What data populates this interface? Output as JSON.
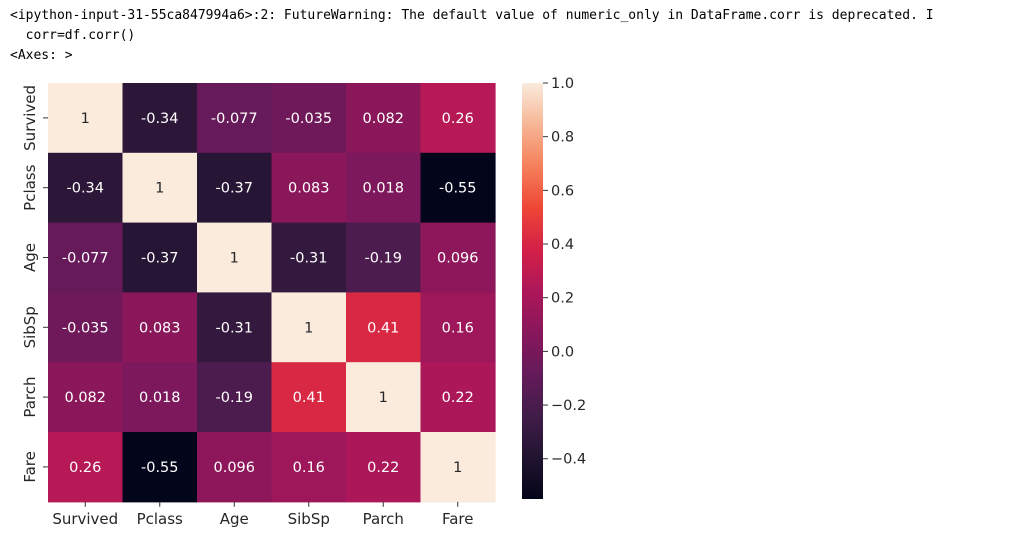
{
  "output": {
    "warning_line": "<ipython-input-31-55ca847994a6>:2: FutureWarning: The default value of numeric_only in DataFrame.corr is deprecated. I",
    "code_line": "  corr=df.corr()",
    "repr_line": "<Axes: >"
  },
  "chart_data": {
    "type": "heatmap",
    "title": "",
    "xlabel": "",
    "ylabel": "",
    "x_categories": [
      "Survived",
      "Pclass",
      "Age",
      "SibSp",
      "Parch",
      "Fare"
    ],
    "y_categories": [
      "Survived",
      "Pclass",
      "Age",
      "SibSp",
      "Parch",
      "Fare"
    ],
    "values": [
      [
        1,
        -0.34,
        -0.077,
        -0.035,
        0.082,
        0.26
      ],
      [
        -0.34,
        1,
        -0.37,
        0.083,
        0.018,
        -0.55
      ],
      [
        -0.077,
        -0.37,
        1,
        -0.31,
        -0.19,
        0.096
      ],
      [
        -0.035,
        0.083,
        -0.31,
        1,
        0.41,
        0.16
      ],
      [
        0.082,
        0.018,
        -0.19,
        0.41,
        1,
        0.22
      ],
      [
        0.26,
        -0.55,
        0.096,
        0.16,
        0.22,
        1
      ]
    ],
    "cell_labels": [
      [
        "1",
        "-0.34",
        "-0.077",
        "-0.035",
        "0.082",
        "0.26"
      ],
      [
        "-0.34",
        "1",
        "-0.37",
        "0.083",
        "0.018",
        "-0.55"
      ],
      [
        "-0.077",
        "-0.37",
        "1",
        "-0.31",
        "-0.19",
        "0.096"
      ],
      [
        "-0.035",
        "0.083",
        "-0.31",
        "1",
        "0.41",
        "0.16"
      ],
      [
        "0.082",
        "0.018",
        "-0.19",
        "0.41",
        "1",
        "0.22"
      ],
      [
        "0.26",
        "-0.55",
        "0.096",
        "0.16",
        "0.22",
        "1"
      ]
    ],
    "colormap": "rocket",
    "colorbar": {
      "range": [
        -0.55,
        1.0
      ],
      "ticks": [
        1.0,
        0.8,
        0.6,
        0.4,
        0.2,
        0.0,
        -0.2,
        -0.4
      ],
      "tick_labels": [
        "1.0",
        "0.8",
        "0.6",
        "0.4",
        "0.2",
        "0.0",
        "−0.2",
        "−0.4"
      ],
      "placement": "right"
    },
    "annotation_colors": {
      "on_dark": "#ffffff",
      "on_light": "#262626"
    },
    "grid": false
  }
}
